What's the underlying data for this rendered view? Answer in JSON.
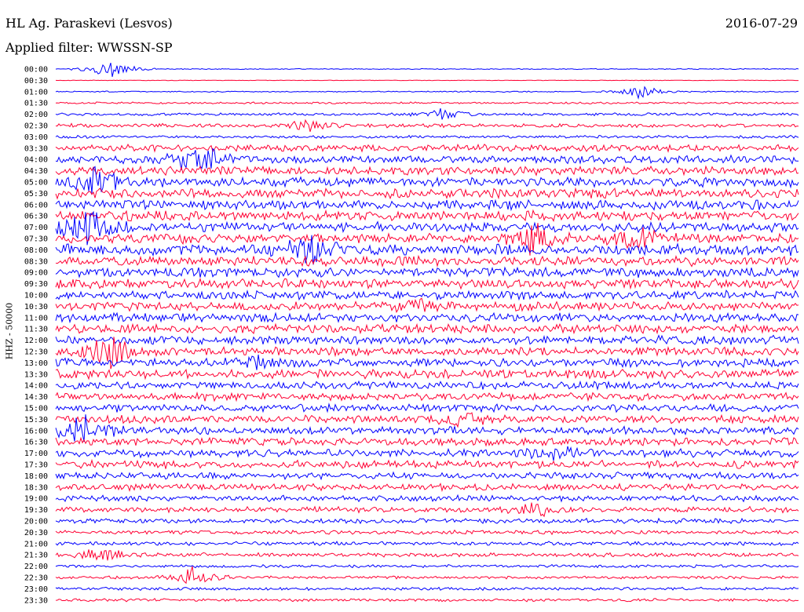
{
  "header": {
    "station": "HL Ag. Paraskevi (Lesvos)",
    "date": "2016-07-29",
    "filter": "Applied filter: WWSSN-SP"
  },
  "chart_data": {
    "type": "line",
    "title": "HL Ag. Paraskevi (Lesvos)",
    "subtitle": "Applied filter: WWSSN-SP",
    "date": "2016-07-29",
    "ylabel": "HHZ - 50000",
    "xlabel": "",
    "grid": false,
    "rows": [
      "00:00",
      "00:30",
      "01:00",
      "01:30",
      "02:00",
      "02:30",
      "03:00",
      "03:30",
      "04:00",
      "04:30",
      "05:00",
      "05:30",
      "06:00",
      "06:30",
      "07:00",
      "07:30",
      "08:00",
      "08:30",
      "09:00",
      "09:30",
      "10:00",
      "10:30",
      "11:00",
      "11:30",
      "12:00",
      "12:30",
      "13:00",
      "13:30",
      "14:00",
      "14:30",
      "15:00",
      "15:30",
      "16:00",
      "16:30",
      "17:00",
      "17:30",
      "18:00",
      "18:30",
      "19:00",
      "19:30",
      "20:00",
      "20:30",
      "21:00",
      "21:30",
      "22:00",
      "22:30",
      "23:00",
      "23:30"
    ],
    "colors": {
      "even": "#0000ff",
      "odd": "#ff0033"
    },
    "noise_level": [
      0.5,
      0.3,
      0.6,
      1.0,
      1.5,
      2.0,
      1.5,
      3.5,
      4.0,
      4.5,
      5.0,
      5.0,
      5.0,
      5.0,
      5.0,
      5.0,
      5.5,
      5.0,
      5.0,
      5.0,
      4.5,
      4.5,
      4.5,
      4.5,
      4.5,
      4.5,
      4.5,
      4.5,
      4.0,
      4.0,
      4.0,
      4.0,
      4.0,
      4.0,
      4.0,
      4.0,
      3.5,
      3.5,
      3.0,
      3.0,
      2.5,
      2.0,
      2.0,
      2.0,
      1.5,
      1.5,
      1.5,
      1.5
    ],
    "events": [
      {
        "row": 0,
        "minute": 2.2,
        "amplitude": 14
      },
      {
        "row": 2,
        "minute": 23.5,
        "amplitude": 10
      },
      {
        "row": 4,
        "minute": 15.6,
        "amplitude": 8
      },
      {
        "row": 5,
        "minute": 10.2,
        "amplitude": 9
      },
      {
        "row": 8,
        "minute": 5.7,
        "amplitude": 30
      },
      {
        "row": 10,
        "minute": 1.5,
        "amplitude": 24
      },
      {
        "row": 14,
        "minute": 1.3,
        "amplitude": 28
      },
      {
        "row": 15,
        "minute": 19.2,
        "amplitude": 22
      },
      {
        "row": 15,
        "minute": 23.5,
        "amplitude": 18
      },
      {
        "row": 16,
        "minute": 10.2,
        "amplitude": 22
      },
      {
        "row": 21,
        "minute": 14.6,
        "amplitude": 10
      },
      {
        "row": 25,
        "minute": 2.3,
        "amplitude": 24
      },
      {
        "row": 26,
        "minute": 8.0,
        "amplitude": 12
      },
      {
        "row": 31,
        "minute": 16.5,
        "amplitude": 14
      },
      {
        "row": 32,
        "minute": 1.0,
        "amplitude": 26
      },
      {
        "row": 34,
        "minute": 20.0,
        "amplitude": 16
      },
      {
        "row": 39,
        "minute": 19.5,
        "amplitude": 10
      },
      {
        "row": 43,
        "minute": 1.7,
        "amplitude": 14
      },
      {
        "row": 45,
        "minute": 5.5,
        "amplitude": 16
      }
    ]
  }
}
